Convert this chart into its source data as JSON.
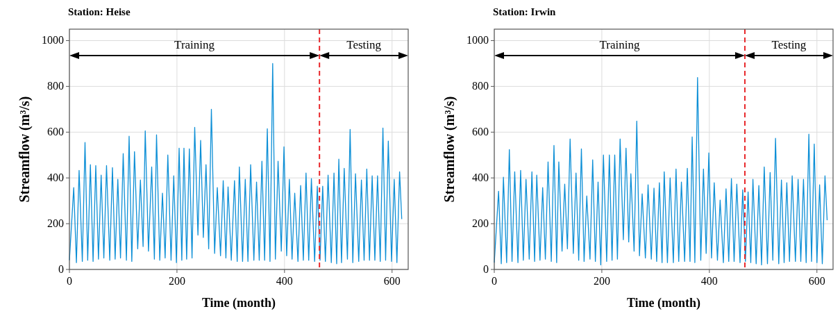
{
  "chart_data": [
    {
      "type": "line",
      "title": "Station: Heise",
      "xlabel": "Time (month)",
      "ylabel": "Streamflow (m³/s)",
      "xlim": [
        0,
        630
      ],
      "xticks": [
        0,
        200,
        400,
        600
      ],
      "ylim": [
        0,
        1050
      ],
      "yticks": [
        0,
        200,
        400,
        600,
        800,
        1000
      ],
      "grid": true,
      "series": [
        {
          "color": "#0d8fd6",
          "x": [
            0,
            8,
            13,
            18,
            24,
            29,
            34,
            39,
            44,
            49,
            54,
            59,
            64,
            69,
            75,
            80,
            85,
            90,
            95,
            100,
            106,
            111,
            116,
            121,
            127,
            132,
            137,
            141,
            147,
            153,
            158,
            162,
            168,
            173,
            178,
            183,
            189,
            194,
            199,
            204,
            209,
            213,
            218,
            223,
            228,
            233,
            239,
            244,
            249,
            254,
            259,
            264,
            270,
            275,
            281,
            286,
            291,
            295,
            301,
            307,
            312,
            316,
            322,
            327,
            332,
            337,
            343,
            348,
            353,
            358,
            363,
            368,
            373,
            378,
            383,
            388,
            394,
            399,
            404,
            409,
            414,
            419,
            425,
            430,
            435,
            440,
            445,
            450,
            456,
            461,
            466,
            471,
            476,
            481,
            487,
            492,
            497,
            501,
            506,
            511,
            517,
            522,
            527,
            532,
            538,
            543,
            548,
            553,
            558,
            563,
            568,
            573,
            578,
            583,
            588,
            593,
            599,
            604,
            609,
            614,
            618
          ],
          "values": [
            40,
            358,
            30,
            433,
            35,
            555,
            40,
            458,
            35,
            454,
            45,
            412,
            50,
            454,
            40,
            445,
            45,
            394,
            50,
            506,
            40,
            582,
            35,
            515,
            90,
            391,
            100,
            606,
            80,
            448,
            45,
            588,
            40,
            333,
            50,
            500,
            40,
            409,
            30,
            530,
            40,
            530,
            45,
            527,
            50,
            621,
            150,
            564,
            140,
            458,
            90,
            700,
            70,
            358,
            60,
            388,
            50,
            361,
            40,
            388,
            35,
            448,
            35,
            394,
            35,
            458,
            40,
            382,
            40,
            473,
            40,
            615,
            35,
            900,
            45,
            473,
            80,
            536,
            60,
            394,
            45,
            333,
            35,
            367,
            40,
            421,
            40,
            397,
            35,
            364,
            40,
            364,
            35,
            412,
            30,
            421,
            25,
            482,
            30,
            442,
            45,
            612,
            30,
            418,
            35,
            391,
            40,
            439,
            40,
            409,
            40,
            409,
            35,
            618,
            40,
            561,
            35,
            394,
            30,
            427,
            220
          ]
        }
      ],
      "ref_lines": [
        {
          "axis": "x",
          "value": 465,
          "color": "#e8272a",
          "line_style": "dashed"
        }
      ],
      "annotations": [
        "Training",
        "Testing"
      ]
    },
    {
      "type": "line",
      "title": "Station: Irwin",
      "xlabel": "Time (month)",
      "ylabel": "Streamflow (m³/s)",
      "xlim": [
        0,
        630
      ],
      "xticks": [
        0,
        200,
        400,
        600
      ],
      "ylim": [
        0,
        1050
      ],
      "yticks": [
        0,
        200,
        400,
        600,
        800,
        1000
      ],
      "grid": true,
      "series": [
        {
          "color": "#0d8fd6",
          "x": [
            0,
            8,
            13,
            17,
            23,
            28,
            33,
            38,
            44,
            49,
            54,
            59,
            65,
            70,
            75,
            79,
            85,
            90,
            95,
            100,
            106,
            111,
            116,
            120,
            126,
            131,
            136,
            141,
            147,
            152,
            157,
            162,
            167,
            172,
            178,
            183,
            188,
            193,
            198,
            203,
            209,
            214,
            219,
            224,
            229,
            234,
            240,
            245,
            250,
            254,
            260,
            265,
            270,
            275,
            281,
            286,
            292,
            297,
            302,
            307,
            312,
            316,
            322,
            327,
            333,
            338,
            343,
            348,
            354,
            359,
            364,
            368,
            373,
            378,
            384,
            389,
            394,
            399,
            404,
            409,
            415,
            420,
            426,
            431,
            436,
            441,
            446,
            451,
            457,
            462,
            467,
            472,
            477,
            481,
            487,
            492,
            497,
            502,
            508,
            513,
            518,
            523,
            529,
            534,
            539,
            544,
            549,
            554,
            560,
            565,
            570,
            575,
            580,
            585,
            590,
            595,
            600,
            605,
            610,
            615,
            619
          ],
          "values": [
            30,
            342,
            25,
            403,
            30,
            524,
            35,
            427,
            30,
            433,
            40,
            394,
            45,
            427,
            35,
            412,
            40,
            358,
            45,
            470,
            35,
            542,
            30,
            470,
            80,
            373,
            90,
            570,
            70,
            421,
            40,
            527,
            35,
            321,
            45,
            479,
            35,
            382,
            20,
            500,
            35,
            500,
            40,
            500,
            45,
            570,
            130,
            530,
            120,
            418,
            80,
            648,
            60,
            330,
            50,
            370,
            45,
            355,
            35,
            379,
            30,
            427,
            30,
            400,
            30,
            439,
            35,
            382,
            35,
            442,
            35,
            579,
            30,
            839,
            40,
            439,
            70,
            509,
            50,
            379,
            40,
            303,
            30,
            352,
            35,
            397,
            35,
            373,
            30,
            348,
            35,
            339,
            30,
            394,
            25,
            367,
            20,
            448,
            25,
            424,
            40,
            573,
            25,
            391,
            30,
            379,
            35,
            409,
            35,
            394,
            35,
            394,
            30,
            591,
            35,
            548,
            30,
            370,
            25,
            409,
            215
          ]
        }
      ],
      "ref_lines": [
        {
          "axis": "x",
          "value": 466,
          "color": "#e8272a",
          "line_style": "dashed"
        }
      ],
      "annotations": [
        "Training",
        "Testing"
      ]
    }
  ]
}
